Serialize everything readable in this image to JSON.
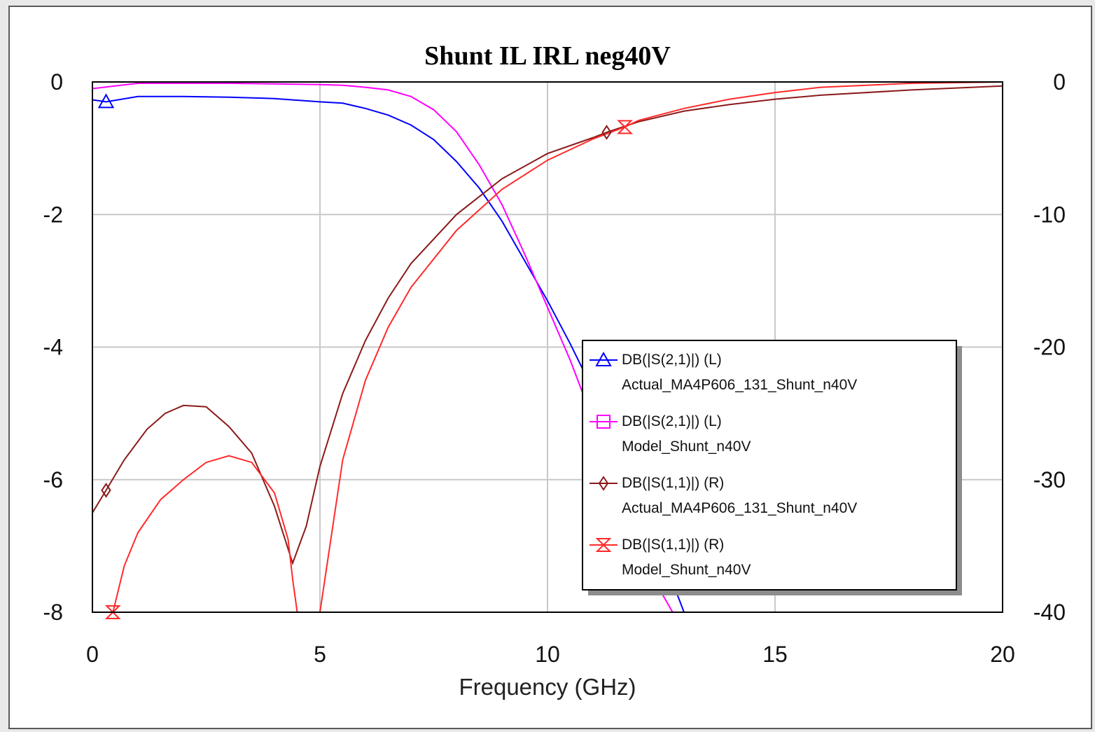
{
  "chart_data": {
    "type": "line",
    "title": "Shunt IL IRL neg40V",
    "xlabel": "Frequency (GHz)",
    "xlim": [
      0,
      20
    ],
    "ylim_left": [
      -8,
      0
    ],
    "ylim_right": [
      -40,
      0
    ],
    "x_ticks": [
      "0",
      "5",
      "10",
      "15",
      "20"
    ],
    "y_ticks_left": [
      "0",
      "-2",
      "-4",
      "-6",
      "-8"
    ],
    "y_ticks_right": [
      "0",
      "-10",
      "-20",
      "-30",
      "-40"
    ],
    "grid": true,
    "legend_position": "right-inside",
    "series": [
      {
        "name": "DB(|S(2,1)|) (L)",
        "name2": "Actual_MA4P606_131_Shunt_n40V",
        "axis": "left",
        "color": "#0000ff",
        "marker": "triangle",
        "x": [
          0,
          0.3,
          1,
          2,
          3,
          4,
          5,
          5.5,
          6,
          6.5,
          7,
          7.5,
          8,
          8.5,
          9,
          9.5,
          10,
          10.5,
          11,
          11.5,
          12,
          12.5,
          13
        ],
        "y": [
          -0.27,
          -0.3,
          -0.22,
          -0.22,
          -0.23,
          -0.25,
          -0.3,
          -0.32,
          -0.4,
          -0.5,
          -0.65,
          -0.87,
          -1.2,
          -1.6,
          -2.1,
          -2.7,
          -3.3,
          -3.95,
          -4.65,
          -5.4,
          -6.2,
          -7.1,
          -8.0
        ]
      },
      {
        "name": "DB(|S(2,1)|) (L)",
        "name2": "Model_Shunt_n40V",
        "axis": "left",
        "color": "#ff00ff",
        "marker": "square",
        "x": [
          0,
          1,
          2,
          3,
          4,
          5,
          5.5,
          6,
          6.5,
          7,
          7.5,
          8,
          8.5,
          9,
          9.5,
          10,
          10.5,
          11,
          11.5,
          12,
          12.5,
          12.75
        ],
        "y": [
          -0.1,
          -0.02,
          -0.02,
          -0.02,
          -0.03,
          -0.04,
          -0.05,
          -0.08,
          -0.12,
          -0.22,
          -0.42,
          -0.75,
          -1.25,
          -1.85,
          -2.6,
          -3.4,
          -4.2,
          -5.1,
          -6.0,
          -6.95,
          -7.7,
          -8.0
        ]
      },
      {
        "name": "DB(|S(1,1)|) (R)",
        "name2": "Actual_MA4P606_131_Shunt_n40V",
        "axis": "right",
        "color": "#8b1a1a",
        "marker": "diamond",
        "x": [
          0,
          0.3,
          0.7,
          1.2,
          1.6,
          2,
          2.5,
          3,
          3.5,
          4,
          4.4,
          4.7,
          5,
          5.5,
          6,
          6.5,
          7,
          8,
          9,
          10,
          11,
          11.3,
          12,
          13,
          14,
          15,
          16,
          18,
          20
        ],
        "y": [
          -32.5,
          -30.8,
          -28.5,
          -26.2,
          -25,
          -24.4,
          -24.5,
          -26,
          -28,
          -32,
          -36.3,
          -33.5,
          -29,
          -23.5,
          -19.5,
          -16.3,
          -13.7,
          -10,
          -7.3,
          -5.4,
          -4.2,
          -3.8,
          -3.0,
          -2.2,
          -1.7,
          -1.3,
          -1.0,
          -0.6,
          -0.3
        ]
      },
      {
        "name": "DB(|S(1,1)|) (R)",
        "name2": "Model_Shunt_n40V",
        "axis": "right",
        "color": "#ff2a2a",
        "marker": "hourglass",
        "x": [
          0.45,
          0.7,
          1,
          1.5,
          2,
          2.5,
          3,
          3.5,
          4,
          4.3,
          4.4,
          4.5,
          5,
          5.5,
          6,
          6.5,
          7,
          8,
          9,
          10,
          11,
          11.7,
          12,
          13,
          14,
          15,
          16,
          18,
          20
        ],
        "y": [
          -40,
          -36.5,
          -34,
          -31.5,
          -30,
          -28.7,
          -28.2,
          -28.7,
          -31,
          -34.5,
          -37.5,
          -40,
          -40,
          -28.5,
          -22.5,
          -18.5,
          -15.5,
          -11.2,
          -8.1,
          -5.9,
          -4.3,
          -3.4,
          -2.9,
          -2.0,
          -1.3,
          -0.8,
          -0.4,
          -0.1,
          0
        ]
      }
    ]
  }
}
